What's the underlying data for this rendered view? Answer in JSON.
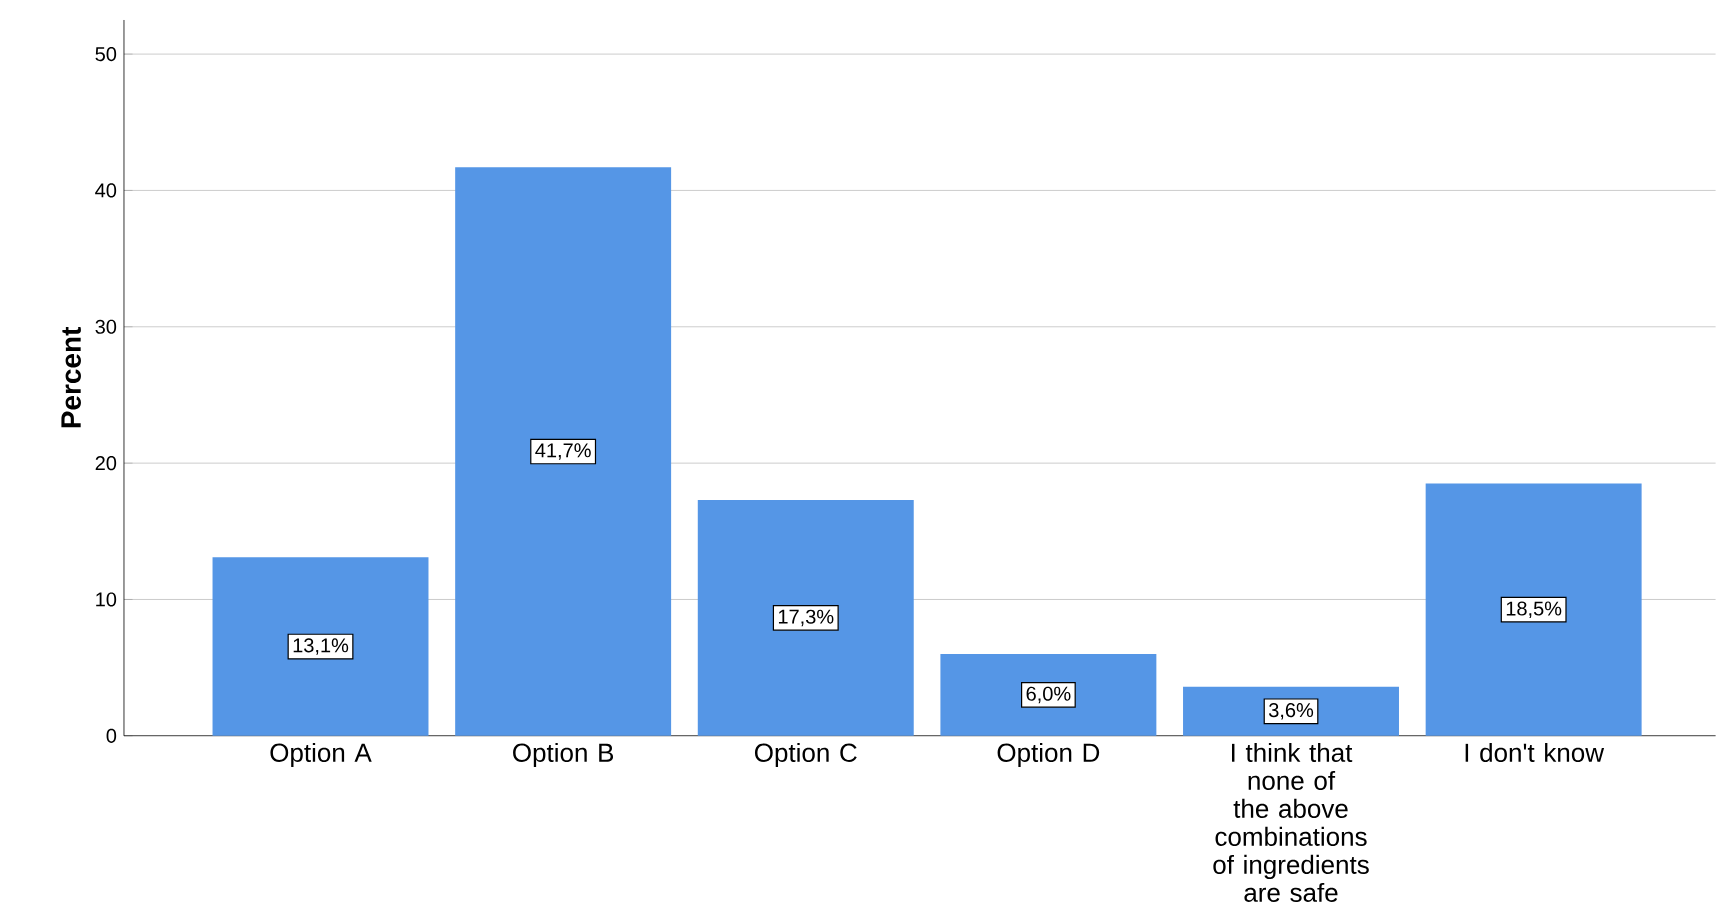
{
  "chart_data": {
    "type": "bar",
    "ylabel": "Percent",
    "categories": [
      "Option A",
      "Option B",
      "Option C",
      "Option D",
      "I think that none of the above combinations of ingredients are safe",
      "I don't know"
    ],
    "values": [
      13.1,
      41.7,
      17.3,
      6.0,
      3.6,
      18.5
    ],
    "value_labels": [
      "13,1%",
      "41,7%",
      "17,3%",
      "6,0%",
      "3,6%",
      "18,5%"
    ],
    "color": "#5596e6",
    "ylim": [
      0,
      52.5
    ],
    "yticks": [
      0,
      10,
      20,
      30,
      40,
      50
    ],
    "grid": "y"
  }
}
